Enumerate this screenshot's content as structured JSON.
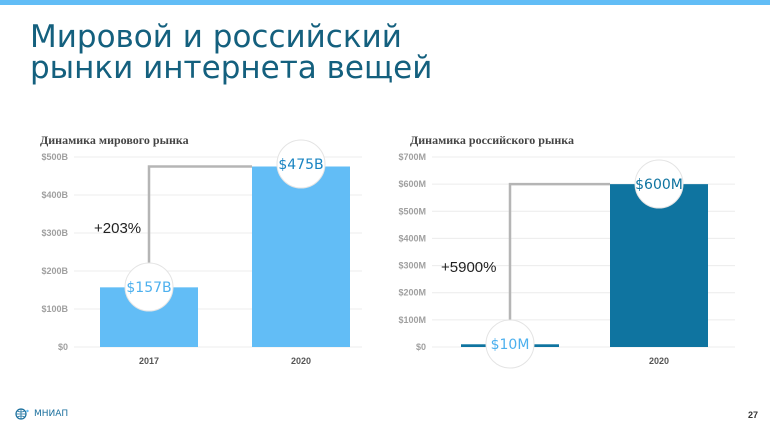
{
  "slide": {
    "title_line1": "Мировой и российский",
    "title_line2": "рынки интернета вещей",
    "page_number": "27",
    "logo_text": "МНИАП"
  },
  "colors": {
    "accent_bar": "#62bdf6",
    "world_bar": "#62bdf6",
    "russia_bar": "#0f74a0",
    "title": "#14607e"
  },
  "chart_data": [
    {
      "type": "bar",
      "title": "Динамика мирового рынка",
      "categories": [
        "2017",
        "2020"
      ],
      "values": [
        157,
        475
      ],
      "unit": "B",
      "ylim": [
        0,
        500
      ],
      "yticks": [
        "$0",
        "$100B",
        "$200B",
        "$300B",
        "$400B",
        "$500B"
      ],
      "data_labels": [
        "$157B",
        "$475B"
      ],
      "growth_label": "+203%",
      "grid": true,
      "color": "#62bdf6"
    },
    {
      "type": "bar",
      "title": "Динамика российского рынка",
      "categories": [
        "",
        "2020"
      ],
      "values": [
        10,
        600
      ],
      "unit": "M",
      "ylim": [
        0,
        700
      ],
      "yticks": [
        "$0",
        "$100M",
        "$200M",
        "$300M",
        "$400M",
        "$500M",
        "$600M",
        "$700M"
      ],
      "data_labels": [
        "$10M",
        "$600M"
      ],
      "growth_label": "+5900%",
      "grid": true,
      "color": "#0f74a0"
    }
  ]
}
